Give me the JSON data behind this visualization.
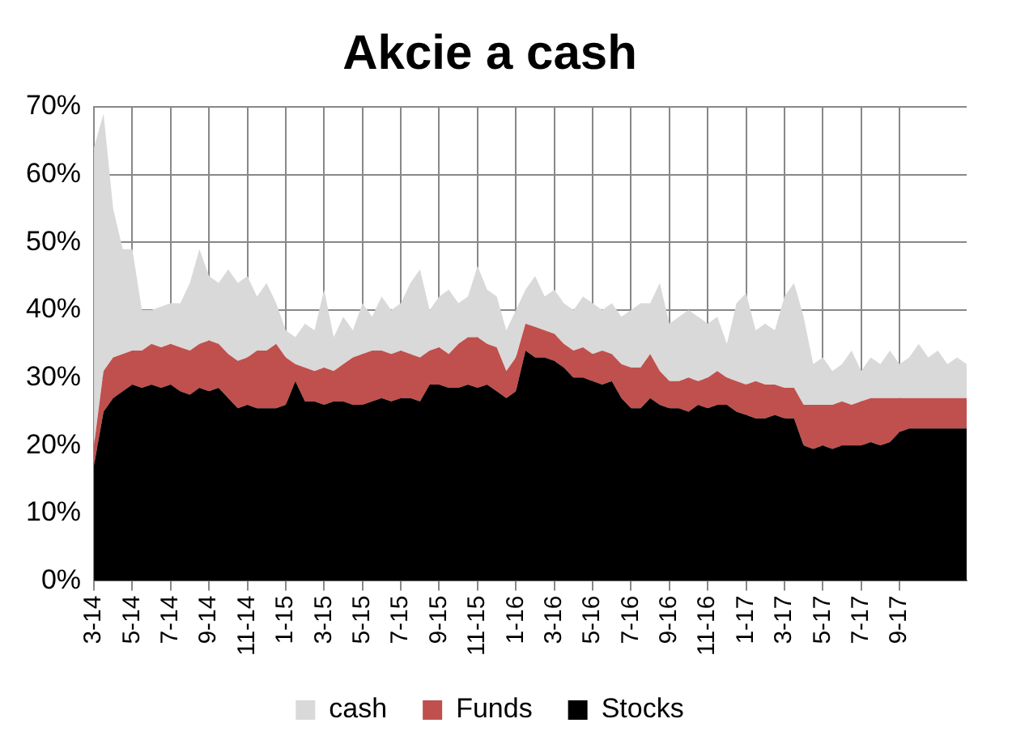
{
  "chart_data": {
    "type": "area",
    "title": "Akcie a cash",
    "stacked": true,
    "grid": true,
    "legend": "bottom",
    "categories": [
      "3-14",
      null,
      null,
      null,
      "5-14",
      null,
      null,
      null,
      "7-14",
      null,
      null,
      null,
      "9-14",
      null,
      null,
      null,
      "11-14",
      null,
      null,
      null,
      "1-15",
      null,
      null,
      null,
      "3-15",
      null,
      null,
      null,
      "5-15",
      null,
      null,
      null,
      "7-15",
      null,
      null,
      null,
      "9-15",
      null,
      null,
      null,
      "11-15",
      null,
      null,
      null,
      "1-16",
      null,
      null,
      null,
      "3-16",
      null,
      null,
      null,
      "5-16",
      null,
      null,
      null,
      "7-16",
      null,
      null,
      null,
      "9-16",
      null,
      null,
      null,
      "11-16",
      null,
      null,
      null,
      "1-17",
      null,
      null,
      null,
      "3-17",
      null,
      null,
      null,
      "5-17",
      null,
      null,
      null,
      "7-17",
      null,
      null,
      null,
      "9-17",
      null,
      null,
      null,
      null,
      null,
      null,
      null
    ],
    "ylim": [
      0,
      70
    ],
    "yticks": [
      {
        "value": 0,
        "label": "0%"
      },
      {
        "value": 10,
        "label": "10%"
      },
      {
        "value": 20,
        "label": "20%"
      },
      {
        "value": 30,
        "label": "30%"
      },
      {
        "value": 40,
        "label": "40%"
      },
      {
        "value": 50,
        "label": "50%"
      },
      {
        "value": 60,
        "label": "60%"
      },
      {
        "value": 70,
        "label": "70%"
      }
    ],
    "series": [
      {
        "name": "Stocks",
        "color": "#000000",
        "values": [
          17,
          25,
          27,
          28,
          29,
          28.5,
          29,
          28.5,
          29,
          28,
          27.5,
          28.5,
          28,
          28.5,
          27,
          25.5,
          26,
          25.5,
          25.5,
          25.5,
          26,
          29.5,
          26.5,
          26.5,
          26,
          26.5,
          26.5,
          26,
          26,
          26.5,
          27,
          26.5,
          27,
          27,
          26.5,
          29,
          29,
          28.5,
          28.5,
          29,
          28.5,
          29,
          28,
          27,
          28,
          34,
          33,
          33,
          32.5,
          31.5,
          30,
          30,
          29.5,
          29,
          29.5,
          27,
          25.5,
          25.5,
          27,
          26,
          25.5,
          25.5,
          25,
          26,
          25.5,
          26,
          26,
          25,
          24.5,
          24,
          24,
          24.5,
          24,
          24,
          20,
          19.5,
          20,
          19.5,
          20,
          20,
          20,
          20.5,
          20,
          20.5,
          22,
          22.5,
          22.5,
          22.5,
          22.5,
          22.5,
          22.5,
          22.5
        ]
      },
      {
        "name": "Funds",
        "color": "#c0504d",
        "values": [
          3,
          6,
          6,
          5.5,
          5,
          5.5,
          6,
          6,
          6,
          6.5,
          6.5,
          6.5,
          7.5,
          6.5,
          6.5,
          7,
          7,
          8.5,
          8.5,
          9.5,
          7,
          2.5,
          5,
          4.5,
          5.5,
          4.5,
          5.5,
          7,
          7.5,
          7.5,
          7,
          7,
          7,
          6.5,
          6.5,
          5,
          5.5,
          5,
          6.5,
          7,
          7.5,
          6,
          6.5,
          4,
          5,
          4,
          4.5,
          4,
          4,
          3.5,
          4,
          4.5,
          4,
          5,
          4,
          5,
          6,
          6,
          6.5,
          5,
          4,
          4,
          5,
          3.5,
          4.5,
          5,
          4,
          4.5,
          4.5,
          5.5,
          5,
          4.5,
          4.5,
          4.5,
          6,
          6.5,
          6,
          6.5,
          6.5,
          6,
          6.5,
          6.5,
          7,
          6.5,
          5,
          4.5,
          4.5,
          4.5,
          4.5,
          4.5,
          4.5,
          4.5
        ]
      },
      {
        "name": "cash",
        "color": "#d9d9d9",
        "values": [
          44,
          38,
          22,
          15.5,
          15,
          6,
          5,
          6,
          6,
          6.5,
          10,
          14,
          9.5,
          9,
          12.5,
          11.5,
          12,
          8,
          10,
          6,
          4,
          4,
          6.5,
          6,
          11.5,
          5,
          7,
          4,
          7.5,
          5,
          8,
          6.5,
          7,
          10.5,
          13,
          6,
          7.5,
          9.5,
          6,
          6,
          10.5,
          8,
          7.5,
          6,
          7,
          5,
          7.5,
          5,
          6.5,
          6,
          6,
          7.5,
          7.5,
          6,
          7.5,
          7,
          8.5,
          9.5,
          7.5,
          13,
          8.5,
          9.5,
          10,
          9.5,
          8,
          8,
          5,
          11.5,
          13.5,
          7.5,
          9,
          8,
          13.5,
          15.5,
          13,
          6,
          7,
          5,
          5.5,
          8,
          4.5,
          6,
          5,
          7,
          5,
          6,
          8,
          6,
          7,
          5,
          6,
          5
        ]
      }
    ]
  }
}
